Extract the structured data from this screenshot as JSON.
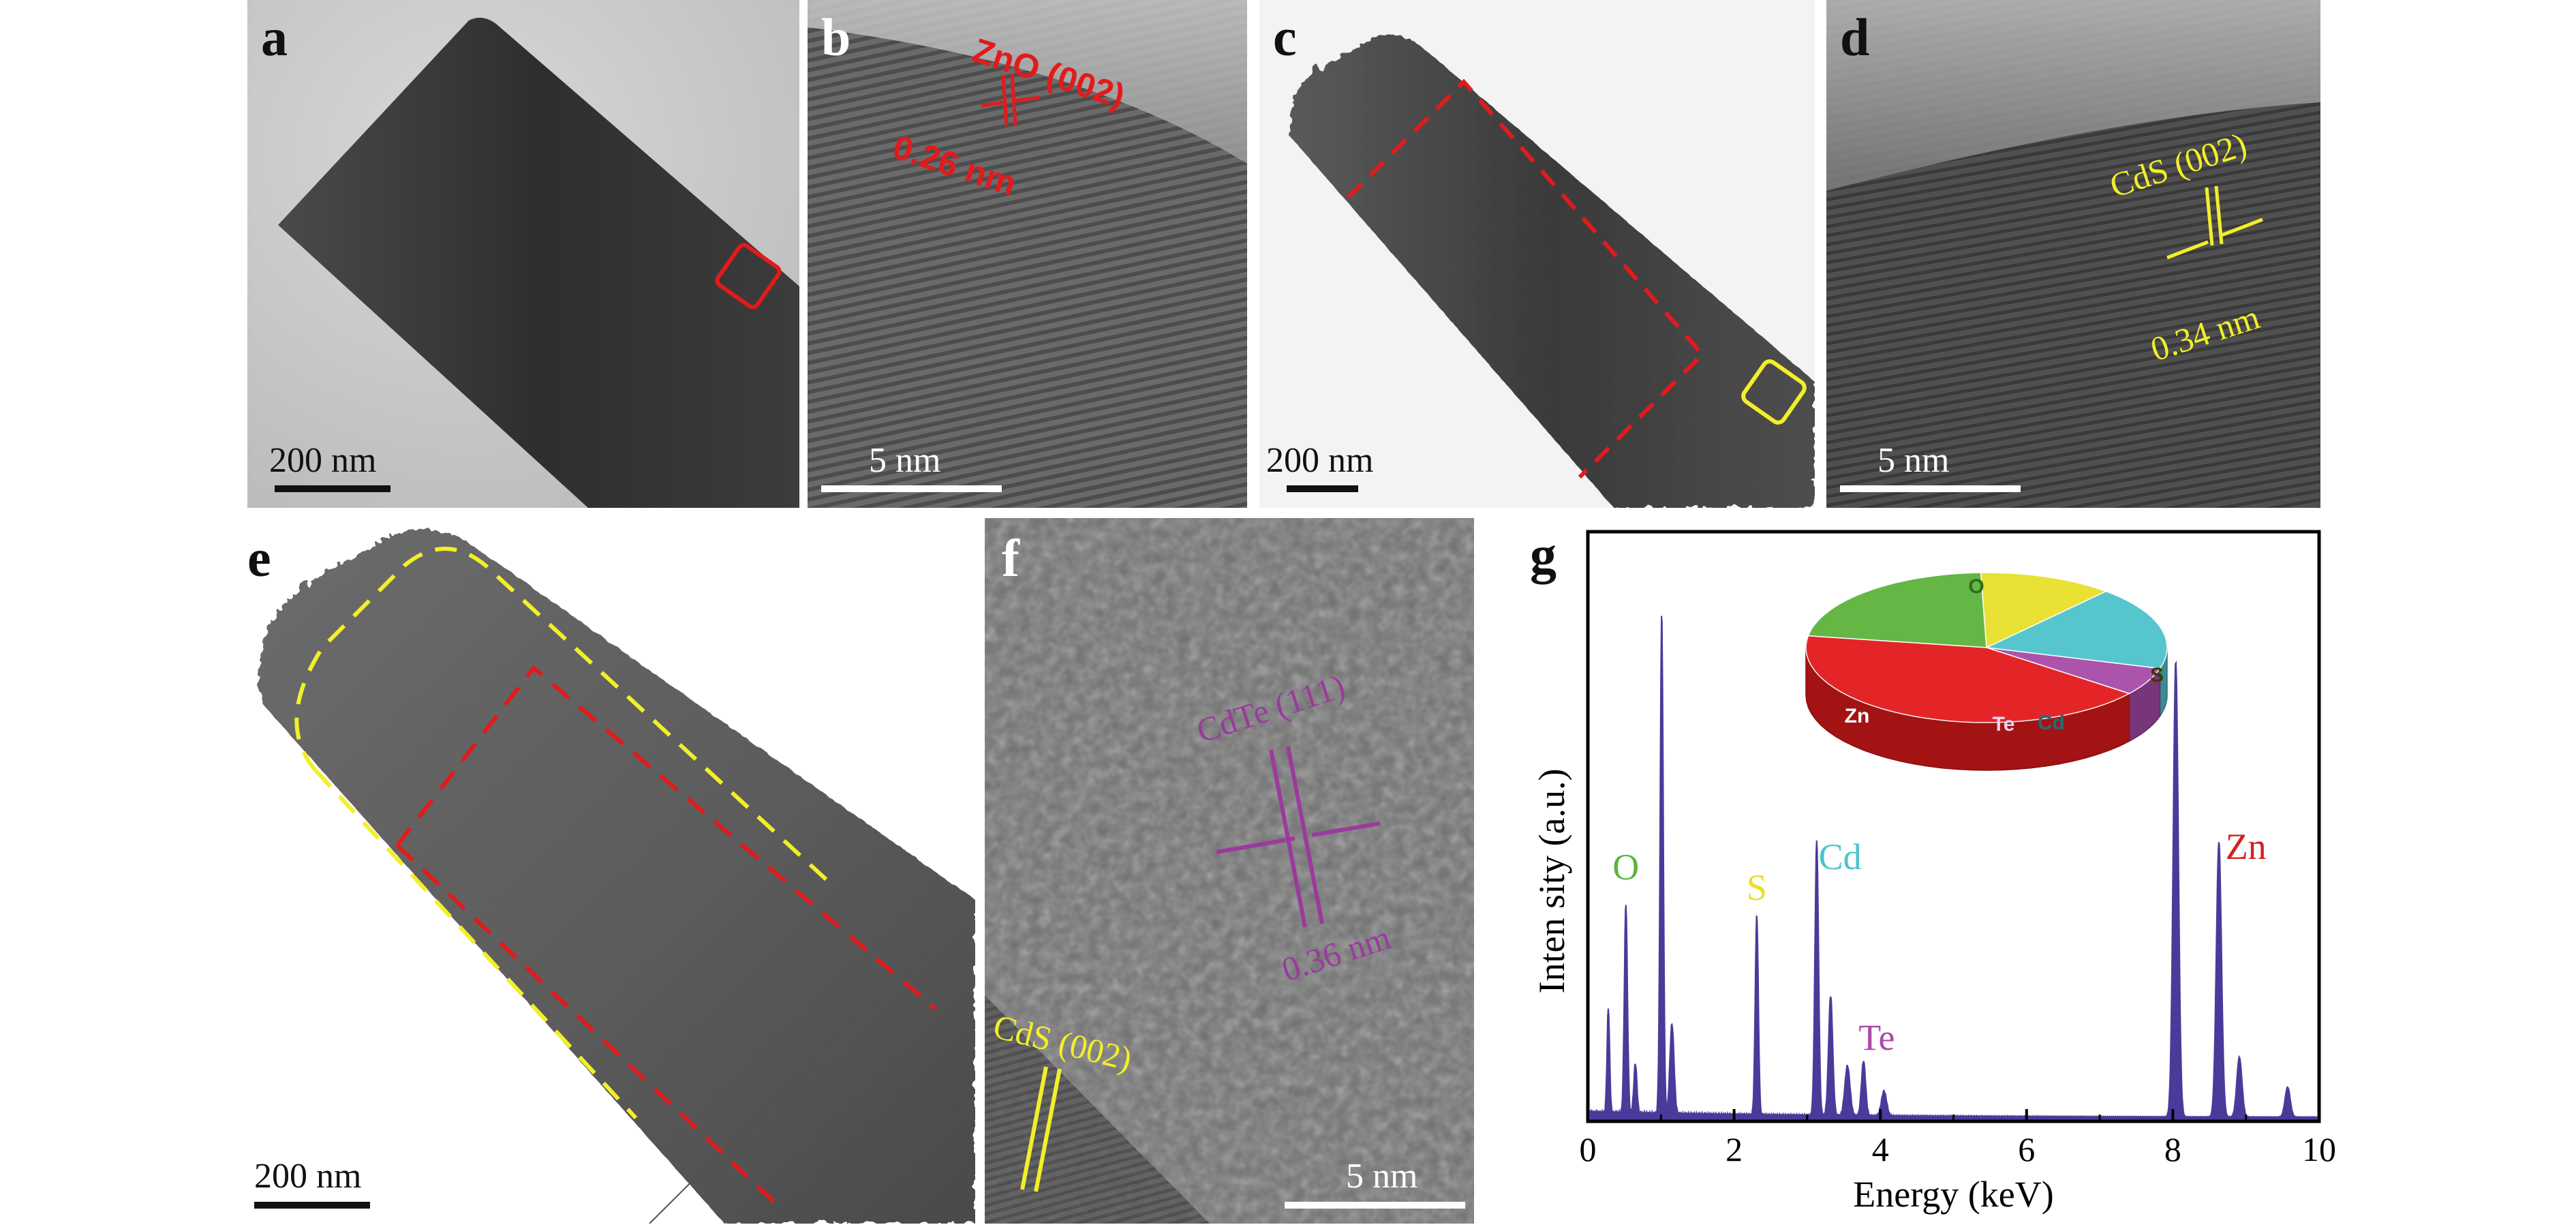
{
  "figure": {
    "panels": {
      "a": {
        "label": "a",
        "scale": "200 nm"
      },
      "b": {
        "label": "b",
        "scale": "5 nm",
        "plane": "ZnO (002)",
        "spacing": "0.26 nm"
      },
      "c": {
        "label": "c",
        "scale": "200 nm"
      },
      "d": {
        "label": "d",
        "scale": "5 nm",
        "plane": "CdS (002)",
        "spacing": "0.34 nm"
      },
      "e": {
        "label": "e",
        "scale": "200 nm"
      },
      "f": {
        "label": "f",
        "scale": "5 nm",
        "plane_cdte": "CdTe (111)",
        "spacing": "0.36 nm",
        "plane_cds": "CdS (002)"
      },
      "g": {
        "label": "g"
      }
    },
    "colors": {
      "red": "#e31a1c",
      "yellow": "#f2ef2a",
      "purple": "#9b3a9e",
      "spectrum": "#4b3a9a",
      "O": "#5cb43c",
      "S": "#e8e02a",
      "Cd": "#4ec3cc",
      "Te": "#a84aa8",
      "Zn": "#d42020"
    }
  },
  "chart_data": {
    "type": "area",
    "xlabel": "Energy (keV)",
    "ylabel": "Inten sity (a.u.)",
    "xlim": [
      0,
      10
    ],
    "xticks": [
      "0",
      "2",
      "4",
      "6",
      "8",
      "10"
    ],
    "peaks": [
      {
        "x": 0.28,
        "y": 0.21,
        "w": 0.025
      },
      {
        "x": 0.52,
        "y": 0.42,
        "w": 0.03
      },
      {
        "x": 0.65,
        "y": 0.1,
        "w": 0.03
      },
      {
        "x": 1.01,
        "y": 1.0,
        "w": 0.03
      },
      {
        "x": 1.15,
        "y": 0.18,
        "w": 0.04
      },
      {
        "x": 2.31,
        "y": 0.4,
        "w": 0.03
      },
      {
        "x": 3.13,
        "y": 0.55,
        "w": 0.035
      },
      {
        "x": 3.32,
        "y": 0.24,
        "w": 0.04
      },
      {
        "x": 3.55,
        "y": 0.1,
        "w": 0.05
      },
      {
        "x": 3.77,
        "y": 0.11,
        "w": 0.04
      },
      {
        "x": 4.05,
        "y": 0.05,
        "w": 0.05
      },
      {
        "x": 8.04,
        "y": 0.91,
        "w": 0.05
      },
      {
        "x": 8.63,
        "y": 0.55,
        "w": 0.05
      },
      {
        "x": 8.91,
        "y": 0.12,
        "w": 0.05
      },
      {
        "x": 9.57,
        "y": 0.06,
        "w": 0.05
      }
    ],
    "peak_labels": [
      {
        "text": "O",
        "x": 0.52,
        "color": "#5cb43c"
      },
      {
        "text": "S",
        "x": 2.31,
        "color": "#e8e02a"
      },
      {
        "text": "Cd",
        "x": 3.4,
        "color": "#4ec3cc"
      },
      {
        "text": "Te",
        "x": 3.9,
        "color": "#a84aa8"
      },
      {
        "text": "Zn",
        "x": 9.0,
        "color": "#d42020"
      }
    ],
    "pie": {
      "labels": [
        "O",
        "S",
        "Cd",
        "Te",
        "Zn"
      ],
      "values": [
        22,
        12,
        18,
        6,
        42
      ],
      "colors": [
        "#5cb43c",
        "#e8e02a",
        "#4ec3cc",
        "#a84aa8",
        "#e31a1c"
      ]
    }
  }
}
